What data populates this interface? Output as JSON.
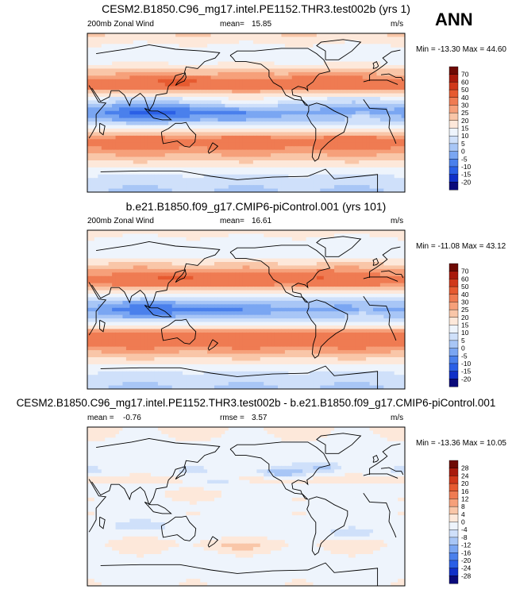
{
  "season": "ANN",
  "chart_data": [
    {
      "type": "heatmap",
      "title": "CESM2.B1850.C96_mg17.intel.PE1152.THR3.test002b (yrs 1)",
      "variable": "200mb Zonal Wind",
      "stat_label": "mean=",
      "stat_value": "15.85",
      "units": "m/s",
      "min_max": "Min = -13.30 Max =  44.60",
      "colorbar_levels": [
        -20,
        -15,
        -10,
        -5,
        0,
        5,
        10,
        15,
        20,
        25,
        30,
        40,
        50,
        60,
        70
      ],
      "colorbar_labels": [
        "70",
        "60",
        "50",
        "40",
        "30",
        "25",
        "20",
        "15",
        "10",
        "5",
        "0",
        "-5",
        "-10",
        "-15",
        "-20"
      ],
      "bands": [
        {
          "lat": 90,
          "value": 20
        },
        {
          "lat": 75,
          "value": 14
        },
        {
          "lat": 60,
          "value": 12
        },
        {
          "lat": 45,
          "value": 24
        },
        {
          "lat": 35,
          "value": 33
        },
        {
          "lat": 28,
          "value": 32
        },
        {
          "lat": 18,
          "value": 12
        },
        {
          "lat": 8,
          "value": 2
        },
        {
          "lat": 0,
          "value": -3
        },
        {
          "lat": -8,
          "value": 2
        },
        {
          "lat": -18,
          "value": 14
        },
        {
          "lat": -28,
          "value": 30
        },
        {
          "lat": -36,
          "value": 34
        },
        {
          "lat": -48,
          "value": 25
        },
        {
          "lat": -60,
          "value": 16
        },
        {
          "lat": -75,
          "value": 8
        },
        {
          "lat": -90,
          "value": 4
        }
      ],
      "anomalies": [
        {
          "lon": 120,
          "lat": 0,
          "value": -8,
          "rlon": 70,
          "rlat": 10
        },
        {
          "lon": 135,
          "lat": 35,
          "value": 12,
          "rlon": 35,
          "rlat": 6
        },
        {
          "lon": 290,
          "lat": 38,
          "value": 8,
          "rlon": 30,
          "rlat": 7
        },
        {
          "lon": 210,
          "lat": 12,
          "value": 10,
          "rlon": 35,
          "rlat": 8
        },
        {
          "lon": 340,
          "lat": -5,
          "value": 8,
          "rlon": 25,
          "rlat": 7
        }
      ]
    },
    {
      "type": "heatmap",
      "title": "b.e21.B1850.f09_g17.CMIP6-piControl.001 (yrs 101)",
      "variable": "200mb Zonal Wind",
      "stat_label": "mean=",
      "stat_value": "16.61",
      "units": "m/s",
      "min_max": "Min = -11.08 Max =  43.12",
      "colorbar_levels": [
        -20,
        -15,
        -10,
        -5,
        0,
        5,
        10,
        15,
        20,
        25,
        30,
        40,
        50,
        60,
        70
      ],
      "colorbar_labels": [
        "70",
        "60",
        "50",
        "40",
        "30",
        "25",
        "20",
        "15",
        "10",
        "5",
        "0",
        "-5",
        "-10",
        "-15",
        "-20"
      ],
      "bands": [
        {
          "lat": 90,
          "value": 18
        },
        {
          "lat": 75,
          "value": 12
        },
        {
          "lat": 60,
          "value": 14
        },
        {
          "lat": 45,
          "value": 26
        },
        {
          "lat": 35,
          "value": 34
        },
        {
          "lat": 28,
          "value": 30
        },
        {
          "lat": 18,
          "value": 14
        },
        {
          "lat": 8,
          "value": 3
        },
        {
          "lat": 0,
          "value": -2
        },
        {
          "lat": -8,
          "value": 3
        },
        {
          "lat": -18,
          "value": 16
        },
        {
          "lat": -28,
          "value": 32
        },
        {
          "lat": -36,
          "value": 35
        },
        {
          "lat": -48,
          "value": 26
        },
        {
          "lat": -60,
          "value": 16
        },
        {
          "lat": -75,
          "value": 8
        },
        {
          "lat": -90,
          "value": 4
        }
      ],
      "anomalies": [
        {
          "lon": 120,
          "lat": 0,
          "value": -7,
          "rlon": 70,
          "rlat": 10
        },
        {
          "lon": 135,
          "lat": 35,
          "value": 10,
          "rlon": 35,
          "rlat": 6
        },
        {
          "lon": 290,
          "lat": 38,
          "value": 8,
          "rlon": 30,
          "rlat": 7
        },
        {
          "lon": 340,
          "lat": -5,
          "value": 6,
          "rlon": 25,
          "rlat": 7
        }
      ]
    },
    {
      "type": "heatmap",
      "title": "CESM2.B1850.C96_mg17.intel.PE1152.THR3.test002b - b.e21.B1850.f09_g17.CMIP6-piControl.001",
      "stat_label": "mean =",
      "stat_value": "-0.76",
      "stat2_label": "rmse =",
      "stat2_value": "3.57",
      "units": "m/s",
      "min_max": "Min = -13.36 Max =  10.05",
      "colorbar_levels": [
        -28,
        -24,
        -20,
        -16,
        -12,
        -8,
        -4,
        0,
        4,
        8,
        12,
        16,
        20,
        24,
        28
      ],
      "colorbar_labels": [
        "28",
        "24",
        "20",
        "16",
        "12",
        "8",
        "4",
        "0",
        "-4",
        "-8",
        "-12",
        "-16",
        "-20",
        "-24",
        "-28"
      ],
      "bands": [
        {
          "lat": 90,
          "value": 1
        },
        {
          "lat": 70,
          "value": -1
        },
        {
          "lat": 55,
          "value": -2
        },
        {
          "lat": 40,
          "value": -3
        },
        {
          "lat": 30,
          "value": 2
        },
        {
          "lat": 20,
          "value": -2
        },
        {
          "lat": 10,
          "value": -1
        },
        {
          "lat": 0,
          "value": -2
        },
        {
          "lat": -10,
          "value": -1
        },
        {
          "lat": -20,
          "value": -2
        },
        {
          "lat": -30,
          "value": -2
        },
        {
          "lat": -42,
          "value": 1
        },
        {
          "lat": -55,
          "value": -1
        },
        {
          "lat": -70,
          "value": -2
        },
        {
          "lat": -90,
          "value": -1
        }
      ],
      "anomalies": [
        {
          "lon": 250,
          "lat": 38,
          "value": -9,
          "rlon": 25,
          "rlat": 5
        },
        {
          "lon": 300,
          "lat": 45,
          "value": -7,
          "rlon": 20,
          "rlat": 5
        },
        {
          "lon": 180,
          "lat": 28,
          "value": -6,
          "rlon": 30,
          "rlat": 5
        },
        {
          "lon": 90,
          "lat": -22,
          "value": -6,
          "rlon": 30,
          "rlat": 6
        },
        {
          "lon": 330,
          "lat": -30,
          "value": -6,
          "rlon": 25,
          "rlat": 6
        },
        {
          "lon": 150,
          "lat": 15,
          "value": 5,
          "rlon": 30,
          "rlat": 6
        },
        {
          "lon": 200,
          "lat": -45,
          "value": 4,
          "rlon": 40,
          "rlat": 6
        }
      ]
    }
  ]
}
